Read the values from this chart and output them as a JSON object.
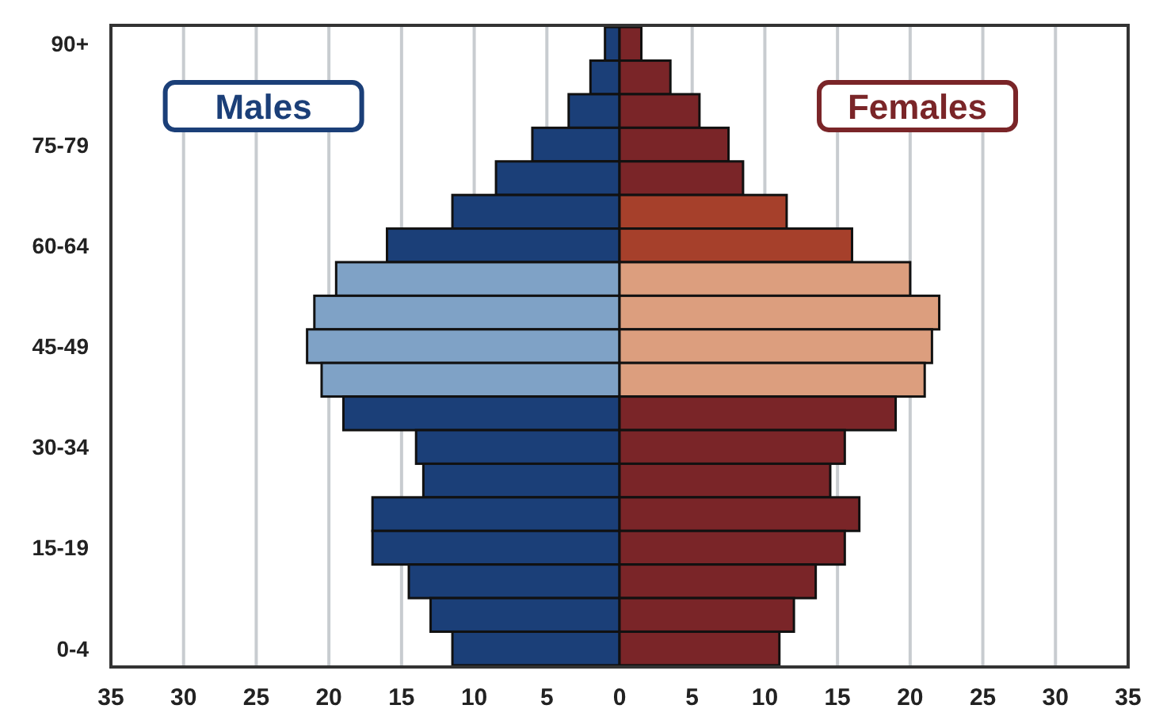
{
  "chart_data": {
    "type": "bar",
    "orientation": "horizontal",
    "stacked": true,
    "categories": [
      "90+",
      null,
      null,
      "75-79",
      null,
      null,
      "60-64",
      null,
      null,
      "45-49",
      null,
      null,
      "30-34",
      null,
      null,
      "15-19",
      null,
      null,
      "0-4"
    ],
    "series": [
      {
        "name": "Males",
        "color": "#1b3f78",
        "colors": [
          "#1b3f78",
          "#1b3f78",
          "#1b3f78",
          "#1b3f78",
          "#1b3f78",
          "#1b3f78",
          "#1b3f78",
          "#7fa2c6",
          "#7fa2c6",
          "#7fa2c6",
          "#7fa2c6",
          "#1b3f78",
          "#1b3f78",
          "#1b3f78",
          "#1b3f78",
          "#1b3f78",
          "#1b3f78",
          "#1b3f78",
          "#1b3f78"
        ],
        "values": [
          -1,
          -2,
          -3.5,
          -6,
          -8.5,
          -11.5,
          -16,
          -19.5,
          -21,
          -21.5,
          -20.5,
          -19,
          -14,
          -13.5,
          -17,
          -17,
          -14.5,
          -13,
          -11.5
        ]
      },
      {
        "name": "Females",
        "color": "#7a2528",
        "colors": [
          "#7a2528",
          "#7a2528",
          "#7a2528",
          "#7a2528",
          "#7a2528",
          "#a6402b",
          "#a6402b",
          "#dc9e7e",
          "#dc9e7e",
          "#dc9e7e",
          "#dc9e7e",
          "#7a2528",
          "#7a2528",
          "#7a2528",
          "#7a2528",
          "#7a2528",
          "#7a2528",
          "#7a2528",
          "#7a2528"
        ],
        "values": [
          1.5,
          3.5,
          5.5,
          7.5,
          8.5,
          11.5,
          16,
          20,
          22,
          21.5,
          21,
          19,
          15.5,
          14.5,
          16.5,
          15.5,
          13.5,
          12,
          11
        ]
      }
    ],
    "xlim": [
      -35,
      35
    ],
    "xticks": [
      {
        "value": -35,
        "label": "35"
      },
      {
        "value": -30,
        "label": "30"
      },
      {
        "value": -25,
        "label": "25"
      },
      {
        "value": -20,
        "label": "20"
      },
      {
        "value": -15,
        "label": "15"
      },
      {
        "value": -10,
        "label": "10"
      },
      {
        "value": -5,
        "label": "5"
      },
      0,
      5,
      10,
      15,
      20,
      25,
      30,
      35
    ],
    "grid": "x"
  }
}
